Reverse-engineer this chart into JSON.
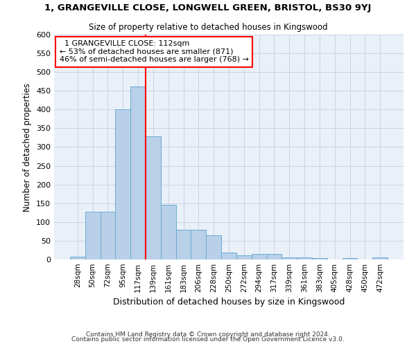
{
  "title1": "1, GRANGEVILLE CLOSE, LONGWELL GREEN, BRISTOL, BS30 9YJ",
  "title2": "Size of property relative to detached houses in Kingswood",
  "xlabel": "Distribution of detached houses by size in Kingswood",
  "ylabel": "Number of detached properties",
  "footer1": "Contains HM Land Registry data © Crown copyright and database right 2024.",
  "footer2": "Contains public sector information licensed under the Open Government Licence v3.0.",
  "annotation_line1": "1 GRANGEVILLE CLOSE: 112sqm",
  "annotation_line2": "← 53% of detached houses are smaller (871)",
  "annotation_line3": "46% of semi-detached houses are larger (768) →",
  "bar_labels": [
    "28sqm",
    "50sqm",
    "72sqm",
    "95sqm",
    "117sqm",
    "139sqm",
    "161sqm",
    "183sqm",
    "206sqm",
    "228sqm",
    "250sqm",
    "272sqm",
    "294sqm",
    "317sqm",
    "339sqm",
    "361sqm",
    "383sqm",
    "405sqm",
    "428sqm",
    "450sqm",
    "472sqm"
  ],
  "bar_values": [
    8,
    128,
    128,
    400,
    462,
    328,
    146,
    80,
    80,
    65,
    18,
    12,
    15,
    15,
    6,
    5,
    4,
    0,
    4,
    0,
    5
  ],
  "bar_color": "#b8d0e8",
  "bar_edge_color": "#6aaad4",
  "grid_color": "#c8d4e8",
  "bg_color": "#eaf0f8",
  "ylim": [
    0,
    600
  ],
  "yticks": [
    0,
    50,
    100,
    150,
    200,
    250,
    300,
    350,
    400,
    450,
    500,
    550,
    600
  ]
}
